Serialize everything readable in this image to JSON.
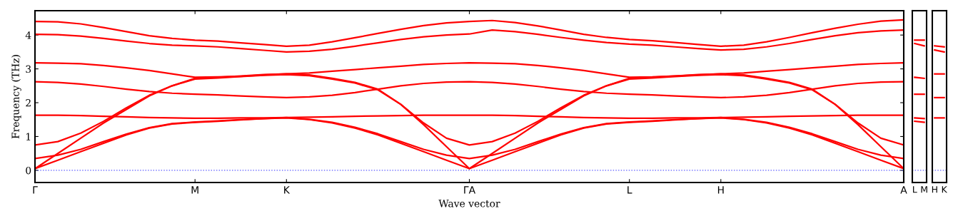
{
  "chart_data": [
    {
      "type": "line",
      "xlabel": "Wave vector",
      "ylabel": "Frequency (THz)",
      "ylim": [
        -0.36,
        4.72
      ],
      "categories": [
        "Γ",
        null,
        null,
        null,
        null,
        null,
        null,
        "M",
        null,
        null,
        null,
        "K",
        null,
        null,
        null,
        null,
        null,
        null,
        null,
        "ΓA",
        null,
        null,
        null,
        null,
        null,
        null,
        "L",
        null,
        null,
        null,
        "H",
        null,
        null,
        null,
        null,
        null,
        null,
        null,
        "A"
      ],
      "yticks": [
        0,
        1,
        2,
        3,
        4
      ],
      "grid": false,
      "marker": "none",
      "line_style": "solid",
      "ref_lines": [
        {
          "axis": "y",
          "value": 0,
          "color": "#5555ff",
          "line_style": "dotted"
        }
      ],
      "series": [
        {
          "color": "#ff0000",
          "values": [
            4.4,
            4.39,
            4.33,
            4.22,
            4.1,
            3.98,
            3.9,
            3.85,
            3.82,
            3.77,
            3.72,
            3.67,
            3.7,
            3.8,
            3.92,
            4.05,
            4.17,
            4.28,
            4.36,
            4.4,
            4.43,
            4.37,
            4.27,
            4.15,
            4.02,
            3.93,
            3.87,
            3.83,
            3.78,
            3.72,
            3.67,
            3.7,
            3.8,
            3.93,
            4.07,
            4.2,
            4.32,
            4.41,
            4.45
          ]
        },
        {
          "color": "#ff0000",
          "values": [
            4.02,
            4.01,
            3.97,
            3.9,
            3.82,
            3.75,
            3.7,
            3.68,
            3.65,
            3.6,
            3.55,
            3.5,
            3.52,
            3.58,
            3.67,
            3.77,
            3.87,
            3.95,
            4.0,
            4.03,
            4.15,
            4.1,
            4.02,
            3.93,
            3.85,
            3.78,
            3.73,
            3.7,
            3.65,
            3.6,
            3.56,
            3.58,
            3.65,
            3.75,
            3.87,
            3.98,
            4.07,
            4.12,
            4.15
          ]
        },
        {
          "color": "#ff0000",
          "values": [
            3.18,
            3.17,
            3.15,
            3.1,
            3.03,
            2.95,
            2.85,
            2.75,
            2.76,
            2.78,
            2.82,
            2.85,
            2.88,
            2.93,
            2.98,
            3.03,
            3.08,
            3.13,
            3.16,
            3.18,
            3.17,
            3.15,
            3.1,
            3.03,
            2.95,
            2.85,
            2.75,
            2.76,
            2.79,
            2.82,
            2.85,
            2.88,
            2.93,
            2.98,
            3.03,
            3.08,
            3.13,
            3.16,
            3.18
          ]
        },
        {
          "color": "#ff0000",
          "values": [
            2.62,
            2.6,
            2.55,
            2.48,
            2.4,
            2.33,
            2.28,
            2.25,
            2.23,
            2.2,
            2.17,
            2.15,
            2.17,
            2.22,
            2.3,
            2.4,
            2.5,
            2.57,
            2.61,
            2.62,
            2.6,
            2.55,
            2.48,
            2.4,
            2.33,
            2.28,
            2.25,
            2.23,
            2.2,
            2.17,
            2.15,
            2.17,
            2.22,
            2.3,
            2.4,
            2.5,
            2.57,
            2.61,
            2.62
          ]
        },
        {
          "color": "#ff0000",
          "values": [
            0.05,
            0.5,
            0.95,
            1.4,
            1.8,
            2.2,
            2.5,
            2.72,
            2.75,
            2.79,
            2.83,
            2.85,
            2.82,
            2.72,
            2.6,
            2.4,
            1.95,
            1.35,
            0.7,
            0.05,
            0.5,
            0.95,
            1.4,
            1.8,
            2.2,
            2.5,
            2.72,
            2.75,
            2.79,
            2.83,
            2.85,
            2.82,
            2.72,
            2.6,
            2.4,
            1.95,
            1.35,
            0.7,
            0.05
          ]
        },
        {
          "color": "#ff0000",
          "values": [
            0.75,
            0.85,
            1.1,
            1.45,
            1.85,
            2.22,
            2.5,
            2.7,
            2.73,
            2.77,
            2.81,
            2.83,
            2.8,
            2.7,
            2.58,
            2.38,
            1.95,
            1.4,
            0.95,
            0.75,
            0.85,
            1.1,
            1.45,
            1.85,
            2.22,
            2.5,
            2.7,
            2.73,
            2.77,
            2.81,
            2.83,
            2.8,
            2.7,
            2.58,
            2.38,
            1.95,
            1.4,
            0.95,
            0.75
          ]
        },
        {
          "color": "#ff0000",
          "values": [
            1.63,
            1.63,
            1.62,
            1.6,
            1.58,
            1.56,
            1.55,
            1.54,
            1.54,
            1.55,
            1.55,
            1.56,
            1.57,
            1.58,
            1.6,
            1.61,
            1.62,
            1.63,
            1.63,
            1.63,
            1.63,
            1.62,
            1.6,
            1.58,
            1.56,
            1.55,
            1.54,
            1.54,
            1.55,
            1.55,
            1.56,
            1.57,
            1.58,
            1.6,
            1.61,
            1.62,
            1.63,
            1.63,
            1.63
          ]
        },
        {
          "color": "#ff0000",
          "values": [
            0.05,
            0.3,
            0.55,
            0.8,
            1.05,
            1.25,
            1.37,
            1.42,
            1.45,
            1.49,
            1.53,
            1.55,
            1.5,
            1.4,
            1.25,
            1.05,
            0.8,
            0.55,
            0.3,
            0.05,
            0.3,
            0.55,
            0.8,
            1.05,
            1.25,
            1.37,
            1.42,
            1.45,
            1.49,
            1.53,
            1.55,
            1.5,
            1.4,
            1.25,
            1.05,
            0.8,
            0.55,
            0.3,
            0.05
          ]
        },
        {
          "color": "#ff0000",
          "values": [
            0.35,
            0.45,
            0.62,
            0.85,
            1.07,
            1.26,
            1.38,
            1.43,
            1.46,
            1.5,
            1.53,
            1.56,
            1.51,
            1.42,
            1.27,
            1.08,
            0.85,
            0.62,
            0.45,
            0.35,
            0.45,
            0.62,
            0.85,
            1.07,
            1.26,
            1.38,
            1.43,
            1.46,
            1.5,
            1.53,
            1.56,
            1.51,
            1.42,
            1.27,
            1.08,
            0.85,
            0.62,
            0.45,
            0.35
          ]
        }
      ]
    },
    {
      "type": "line",
      "ylim": [
        -0.36,
        4.72
      ],
      "categories": [
        "L",
        "M"
      ],
      "yticks": [
        0,
        1,
        2,
        3,
        4
      ],
      "tick_labels": "x",
      "grid": false,
      "marker": "none",
      "line_style": "solid",
      "ref_lines": [
        {
          "axis": "y",
          "value": 0,
          "color": "#5555ff",
          "line_style": "dotted"
        }
      ],
      "series": [
        {
          "color": "#ff0000",
          "values": [
            3.85,
            3.85
          ]
        },
        {
          "color": "#ff0000",
          "values": [
            3.75,
            3.68
          ]
        },
        {
          "color": "#ff0000",
          "values": [
            2.75,
            2.72
          ]
        },
        {
          "color": "#ff0000",
          "values": [
            2.25,
            2.25
          ]
        },
        {
          "color": "#ff0000",
          "values": [
            1.55,
            1.53
          ]
        },
        {
          "color": "#ff0000",
          "values": [
            1.45,
            1.42
          ]
        }
      ]
    },
    {
      "type": "line",
      "ylim": [
        -0.36,
        4.72
      ],
      "categories": [
        "H",
        "K"
      ],
      "yticks": [
        0,
        1,
        2,
        3,
        4
      ],
      "tick_labels": "x",
      "grid": false,
      "marker": "none",
      "line_style": "solid",
      "ref_lines": [
        {
          "axis": "y",
          "value": 0,
          "color": "#5555ff",
          "line_style": "dotted"
        }
      ],
      "series": [
        {
          "color": "#ff0000",
          "values": [
            3.68,
            3.65
          ]
        },
        {
          "color": "#ff0000",
          "values": [
            3.56,
            3.5
          ]
        },
        {
          "color": "#ff0000",
          "values": [
            2.85,
            2.85
          ]
        },
        {
          "color": "#ff0000",
          "values": [
            2.15,
            2.15
          ]
        },
        {
          "color": "#ff0000",
          "values": [
            1.55,
            1.55
          ]
        }
      ]
    }
  ]
}
